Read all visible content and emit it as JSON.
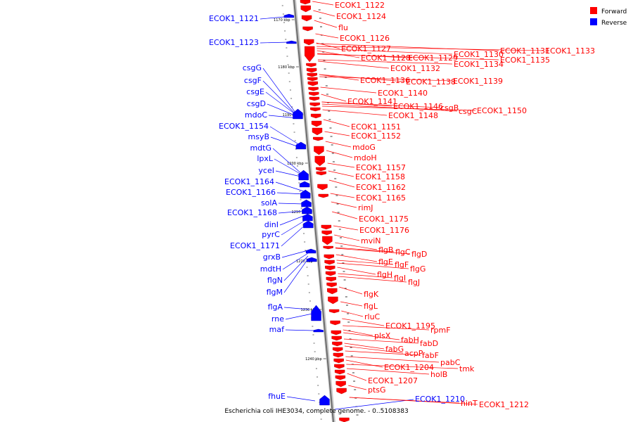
{
  "caption": "Escherichia coli IHE3034, complete genome. - 0..5108383",
  "colors": {
    "forward": "#ff0000",
    "reverse": "#0000ff",
    "backbone": "#808080"
  },
  "legend": [
    {
      "label": "Forward",
      "color": "#ff0000"
    },
    {
      "label": "Reverse",
      "color": "#0000ff"
    }
  ],
  "ticks": [
    "1170 kbp",
    "1180 kbp",
    "1190 kbp",
    "1200 kbp",
    "1210 kbp",
    "1220 kbp",
    "1230 kbp",
    "1240 kbp"
  ],
  "reverse_genes": [
    "ECOK1_1121",
    "ECOK1_1123",
    "csgG",
    "csgF",
    "csgE",
    "csgD",
    "mdoC",
    "ECOK1_1154",
    "msyB",
    "mdtG",
    "lpxL",
    "yceI",
    "ECOK1_1164",
    "ECOK1_1166",
    "solA",
    "ECOK1_1168",
    "dinI",
    "pyrC",
    "ECOK1_1171",
    "grxB",
    "mdtH",
    "flgN",
    "flgM",
    "flgA",
    "rne",
    "maf",
    "fhuE",
    "ECOK1_1210"
  ],
  "forward_genes": [
    "ECOK1_1122",
    "ECOK1_1124",
    "flu",
    "ECOK1_1126",
    "ECOK1_1127",
    "ECOK1_1128",
    "ECOK1_1129",
    "ECOK1_1130",
    "ECOK1_1131",
    "ECOK1_1133",
    "ECOK1_1135",
    "ECOK1_1132",
    "ECOK1_1134",
    "ECOK1_1136",
    "ECOK1_1138",
    "ECOK1_1139",
    "ECOK1_1140",
    "ECOK1_1141",
    "ECOK1_1146",
    "csgB",
    "csgC",
    "ECOK1_1150",
    "ECOK1_1148",
    "ECOK1_1151",
    "ECOK1_1152",
    "mdoG",
    "mdoH",
    "ECOK1_1157",
    "ECOK1_1158",
    "ECOK1_1162",
    "ECOK1_1165",
    "rimJ",
    "ECOK1_1175",
    "ECOK1_1176",
    "mviN",
    "flgB",
    "flgC",
    "flgD",
    "flgE",
    "flgF",
    "flgG",
    "flgH",
    "flgI",
    "flgJ",
    "flgK",
    "flgL",
    "rluC",
    "ECOK1_1195",
    "rpmF",
    "plsX",
    "fabH",
    "fabD",
    "fabG",
    "acpP",
    "fabF",
    "pabC",
    "ECOK1_1204",
    "tmk",
    "holB",
    "ECOK1_1207",
    "ptsG",
    "hinT",
    "ECOK1_1212"
  ]
}
